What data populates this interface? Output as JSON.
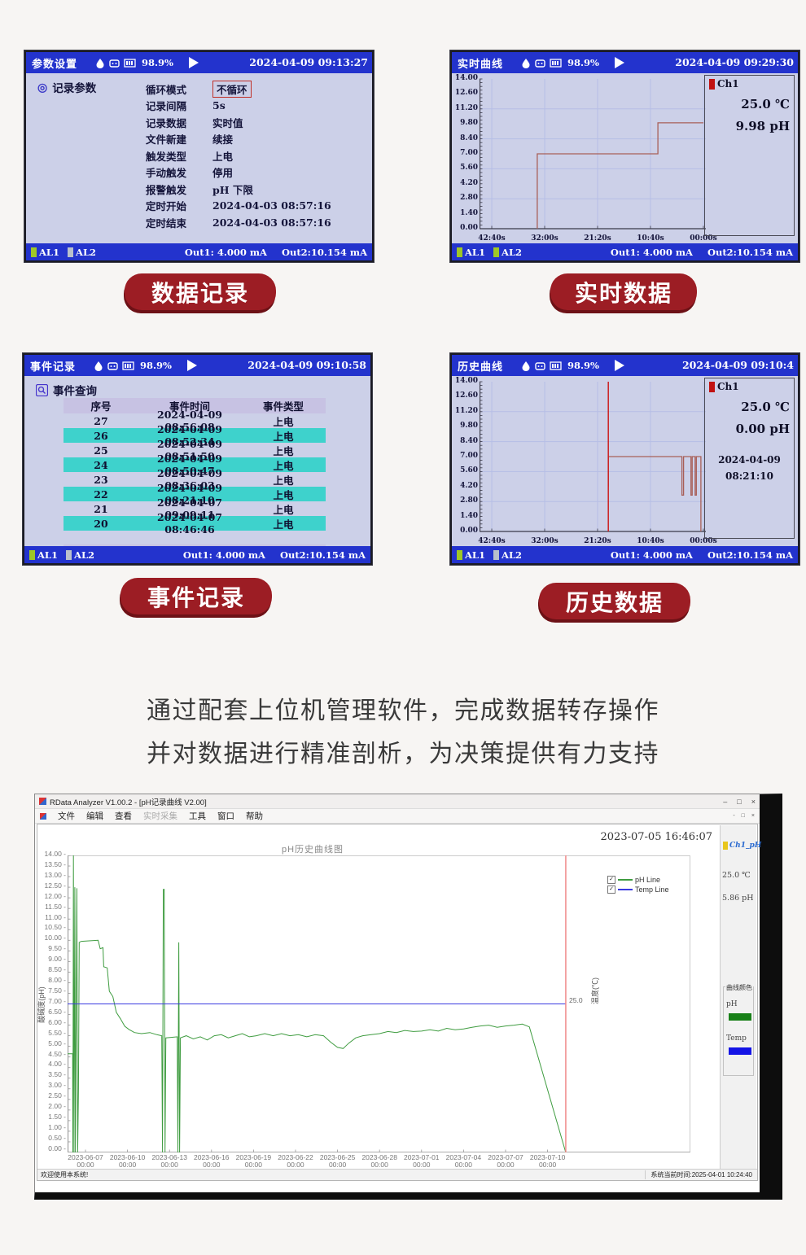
{
  "accent_red": "#9c1d24",
  "device_header_blue": "#2333cd",
  "screens": {
    "param": {
      "title": "参数设置",
      "battery": "98.9%",
      "datetime": "2024-04-09 09:13:27",
      "section": "记录参数",
      "params": [
        {
          "label": "循环模式",
          "value": "不循环",
          "boxed": true
        },
        {
          "label": "记录间隔",
          "value": "5s"
        },
        {
          "label": "记录数据",
          "value": "实时值"
        },
        {
          "label": "文件新建",
          "value": "续接"
        },
        {
          "label": "触发类型",
          "value": "上电"
        },
        {
          "label": "手动触发",
          "value": "停用"
        },
        {
          "label": "报警触发",
          "value": "pH  下限"
        },
        {
          "label": "定时开始",
          "value": "2024-04-03  08:57:16"
        },
        {
          "label": "定时结束",
          "value": "2024-04-03  08:57:16"
        }
      ],
      "al1": "AL1",
      "al2": "AL2",
      "al2_on": false,
      "out1": "Out1: 4.000 mA",
      "out2": "Out2:10.154 mA"
    },
    "realtime": {
      "title": "实时曲线",
      "battery": "98.9%",
      "datetime": "2024-04-09 09:29:30",
      "legend": {
        "ch": "Ch1",
        "temp": "25.0 ℃",
        "ph": "9.98 pH"
      },
      "al1": "AL1",
      "al2": "AL2",
      "al2_on": true,
      "out1": "Out1: 4.000 mA",
      "out2": "Out2:10.154 mA"
    },
    "events": {
      "title": "事件记录",
      "battery": "98.9%",
      "datetime": "2024-04-09 09:10:58",
      "section": "事件查询",
      "table": {
        "headers": [
          "序号",
          "事件时间",
          "事件类型"
        ],
        "rows": [
          [
            "27",
            "2024-04-09 08:56:08",
            "上电"
          ],
          [
            "26",
            "2024-04-09 08:52:34",
            "上电"
          ],
          [
            "25",
            "2024-04-09 08:51:50",
            "上电"
          ],
          [
            "24",
            "2024-04-09 08:50:47",
            "上电"
          ],
          [
            "23",
            "2024-04-09 08:36:03",
            "上电"
          ],
          [
            "22",
            "2024-04-09 08:21:10",
            "上电"
          ],
          [
            "21",
            "2024-04-07 09:09:11",
            "上电"
          ],
          [
            "20",
            "2024-04-07 08:46:46",
            "上电"
          ]
        ],
        "highlight_color": "#3ed2cc"
      },
      "al1": "AL1",
      "al2": "AL2",
      "al2_on": false,
      "out1": "Out1: 4.000 mA",
      "out2": "Out2:10.154 mA"
    },
    "history": {
      "title": "历史曲线",
      "battery": "98.9%",
      "datetime": "2024-04-09 09:10:4",
      "legend": {
        "ch": "Ch1",
        "temp": "25.0 ℃",
        "ph": "0.00 pH",
        "date": "2024-04-09",
        "time": "08:21:10"
      },
      "al1": "AL1",
      "al2": "AL2",
      "al2_on": false,
      "out1": "Out1: 4.000 mA",
      "out2": "Out2:10.154 mA"
    }
  },
  "pills": {
    "data_record": "数据记录",
    "realtime_data": "实时数据",
    "event_record": "事件记录",
    "history_data": "历史数据"
  },
  "caption": {
    "line1": "通过配套上位机管理软件，完成数据转存操作",
    "line2": "并对数据进行精准剖析，为决策提供有力支持"
  },
  "app": {
    "title": "RData Analyzer V1.00.2 - [pH记录曲线 V2.00]",
    "window_controls": [
      "–",
      "□",
      "×"
    ],
    "mdi_controls": [
      "-",
      "□",
      "×"
    ],
    "menus": [
      {
        "label": "文件"
      },
      {
        "label": "编辑"
      },
      {
        "label": "查看"
      },
      {
        "label": "实时采集",
        "disabled": true
      },
      {
        "label": "工具"
      },
      {
        "label": "窗口"
      },
      {
        "label": "帮助"
      }
    ],
    "datetime": "2023-07-05 16:46:07",
    "panel": {
      "channel": "Ch1_pH",
      "channel_color": "#2b6bd0",
      "swatch": "#e8c61c",
      "temp": "25.0 ℃",
      "ph": "5.86 pH",
      "group_title": "曲线颜色",
      "ph_label": "pH",
      "ph_color": "#188018",
      "temp_label": "Temp",
      "temp_color": "#1414e6"
    },
    "status_left": "欢迎使用本系统!",
    "status_right": "系统当前时间:2025-04-01 10:24:40"
  },
  "chart_data": [
    {
      "id": "main_ph_history",
      "type": "line",
      "title": "pH历史曲线图",
      "ylabel": "酸碱度(pH)",
      "ylabel_right": "温度(℃)",
      "ylim": [
        0,
        14
      ],
      "ytick_step": 0.5,
      "x_unit": "days since 2023-06-07 00:00",
      "xlim": [
        -1.28,
        43.2
      ],
      "grid": false,
      "legend_position": "upper right inside",
      "xticks": [
        {
          "v": 0,
          "label": "2023-06-07",
          "label2": "00:00"
        },
        {
          "v": 3,
          "label": "2023-06-10",
          "label2": "00:00"
        },
        {
          "v": 6,
          "label": "2023-06-13",
          "label2": "00:00"
        },
        {
          "v": 9,
          "label": "2023-06-16",
          "label2": "00:00"
        },
        {
          "v": 12,
          "label": "2023-06-19",
          "label2": "00:00"
        },
        {
          "v": 15,
          "label": "2023-06-22",
          "label2": "00:00"
        },
        {
          "v": 18,
          "label": "2023-06-25",
          "label2": "00:00"
        },
        {
          "v": 21,
          "label": "2023-06-28",
          "label2": "00:00"
        },
        {
          "v": 24,
          "label": "2023-07-01",
          "label2": "00:00"
        },
        {
          "v": 27,
          "label": "2023-07-04",
          "label2": "00:00"
        },
        {
          "v": 30,
          "label": "2023-07-07",
          "label2": "00:00"
        },
        {
          "v": 33,
          "label": "2023-07-10",
          "label2": "00:00"
        }
      ],
      "right_axis": {
        "tick_label": "25.0",
        "plotted_at_ph": 7.0
      },
      "cursor": {
        "x": 34.3,
        "color": "#f08a8a"
      },
      "series": [
        {
          "name": "pH Line",
          "color": "#3f9c40",
          "points": [
            [
              -1.28,
              4.65
            ],
            [
              -0.92,
              4.65
            ],
            [
              -0.9,
              0
            ],
            [
              -0.86,
              14
            ],
            [
              -0.82,
              0
            ],
            [
              -0.76,
              12.5
            ],
            [
              -0.72,
              0
            ],
            [
              -0.62,
              12.45
            ],
            [
              -0.56,
              0
            ],
            [
              -0.5,
              3
            ],
            [
              -0.45,
              9.9
            ],
            [
              -0.3,
              9.95
            ],
            [
              0.9,
              10
            ],
            [
              1.05,
              9.6
            ],
            [
              1.25,
              9.65
            ],
            [
              1.3,
              8.75
            ],
            [
              1.55,
              8.7
            ],
            [
              1.7,
              7.6
            ],
            [
              1.95,
              7.35
            ],
            [
              2.2,
              6.6
            ],
            [
              2.5,
              6.3
            ],
            [
              2.8,
              5.95
            ],
            [
              3.1,
              5.8
            ],
            [
              3.5,
              5.65
            ],
            [
              4,
              5.6
            ],
            [
              4.6,
              5.65
            ],
            [
              5.1,
              5.55
            ],
            [
              5.45,
              5.5
            ],
            [
              5.5,
              0
            ],
            [
              5.56,
              12.4
            ],
            [
              5.62,
              12.4
            ],
            [
              5.68,
              0
            ],
            [
              5.74,
              5.4
            ],
            [
              6.55,
              5.45
            ],
            [
              6.6,
              0
            ],
            [
              6.66,
              9.9
            ],
            [
              6.72,
              0
            ],
            [
              6.78,
              5.4
            ],
            [
              7.2,
              5.5
            ],
            [
              7.7,
              5.35
            ],
            [
              8.2,
              5.45
            ],
            [
              8.7,
              5.3
            ],
            [
              9.2,
              5.5
            ],
            [
              9.7,
              5.55
            ],
            [
              10.2,
              5.4
            ],
            [
              10.7,
              5.5
            ],
            [
              11.2,
              5.6
            ],
            [
              11.7,
              5.45
            ],
            [
              12.2,
              5.5
            ],
            [
              12.8,
              5.6
            ],
            [
              13.4,
              5.5
            ],
            [
              14,
              5.6
            ],
            [
              14.6,
              5.5
            ],
            [
              15.2,
              5.55
            ],
            [
              15.8,
              5.45
            ],
            [
              16.4,
              5.55
            ],
            [
              17,
              5.5
            ],
            [
              17.5,
              5.2
            ],
            [
              18,
              4.95
            ],
            [
              18.4,
              4.9
            ],
            [
              18.8,
              5.15
            ],
            [
              19.3,
              5.4
            ],
            [
              19.8,
              5.5
            ],
            [
              20.4,
              5.55
            ],
            [
              21,
              5.6
            ],
            [
              21.6,
              5.7
            ],
            [
              22.2,
              5.65
            ],
            [
              22.8,
              5.75
            ],
            [
              23.4,
              5.7
            ],
            [
              24,
              5.72
            ],
            [
              24.6,
              5.78
            ],
            [
              25.2,
              5.72
            ],
            [
              25.8,
              5.85
            ],
            [
              26.4,
              5.78
            ],
            [
              27,
              5.82
            ],
            [
              27.6,
              5.9
            ],
            [
              28.2,
              5.96
            ],
            [
              28.8,
              6
            ],
            [
              29.4,
              5.9
            ],
            [
              30,
              5.96
            ],
            [
              30.6,
              6
            ],
            [
              31.2,
              6.05
            ],
            [
              31.7,
              5.92
            ],
            [
              34.3,
              0
            ]
          ]
        },
        {
          "name": "Temp Line",
          "color": "#3a3ae0",
          "value_celsius": 25.0,
          "points": [
            [
              -1.28,
              7.0
            ],
            [
              34.3,
              7.0
            ]
          ]
        }
      ]
    },
    {
      "id": "realtime_curve",
      "type": "line",
      "ylim": [
        0,
        14
      ],
      "yticks": [
        "14.00",
        "12.60",
        "11.20",
        "9.80",
        "8.40",
        "7.00",
        "5.60",
        "4.20",
        "2.80",
        "1.40",
        "0.00"
      ],
      "x_unit": "seconds (countdown)",
      "xlim": [
        2708,
        -30
      ],
      "xticks": [
        {
          "v": 2560,
          "label": "42:40s"
        },
        {
          "v": 1920,
          "label": "32:00s"
        },
        {
          "v": 1280,
          "label": "21:20s"
        },
        {
          "v": 640,
          "label": "10:40s"
        },
        {
          "v": 0,
          "label": "00:00s"
        }
      ],
      "grid_y": [
        2.8,
        5.6,
        8.4,
        11.2
      ],
      "series": [
        {
          "name": "Ch1 pH",
          "color": "#a85f58",
          "points": [
            [
              2010,
              0
            ],
            [
              2010,
              7.0
            ],
            [
              550,
              7.0
            ],
            [
              550,
              9.9
            ],
            [
              0,
              9.9
            ]
          ]
        }
      ]
    },
    {
      "id": "history_curve",
      "type": "line",
      "ylim": [
        0,
        14
      ],
      "yticks": [
        "14.00",
        "12.60",
        "11.20",
        "9.80",
        "8.40",
        "7.00",
        "5.60",
        "4.20",
        "2.80",
        "1.40",
        "0.00"
      ],
      "x_unit": "seconds (countdown)",
      "xlim": [
        2708,
        -30
      ],
      "xticks": [
        {
          "v": 2560,
          "label": "42:40s"
        },
        {
          "v": 1920,
          "label": "32:00s"
        },
        {
          "v": 1280,
          "label": "21:20s"
        },
        {
          "v": 640,
          "label": "10:40s"
        },
        {
          "v": 0,
          "label": "00:00s"
        }
      ],
      "grid_y": [
        2.8,
        5.6,
        8.4,
        11.2
      ],
      "cursor": {
        "x": 1150,
        "color": "#cc1f1f"
      },
      "series": [
        {
          "name": "Ch1 pH",
          "color": "#a85f58",
          "points": [
            [
              1150,
              4.2
            ],
            [
              1150,
              7.0
            ],
            [
              260,
              7.0
            ],
            [
              260,
              3.4
            ],
            [
              240,
              3.4
            ],
            [
              240,
              7.0
            ],
            [
              150,
              7.0
            ],
            [
              150,
              3.4
            ],
            [
              135,
              3.4
            ],
            [
              135,
              7.0
            ],
            [
              100,
              7.0
            ],
            [
              100,
              3.4
            ],
            [
              85,
              3.4
            ],
            [
              85,
              7.0
            ],
            [
              30,
              7.0
            ],
            [
              30,
              0
            ]
          ]
        }
      ]
    }
  ]
}
